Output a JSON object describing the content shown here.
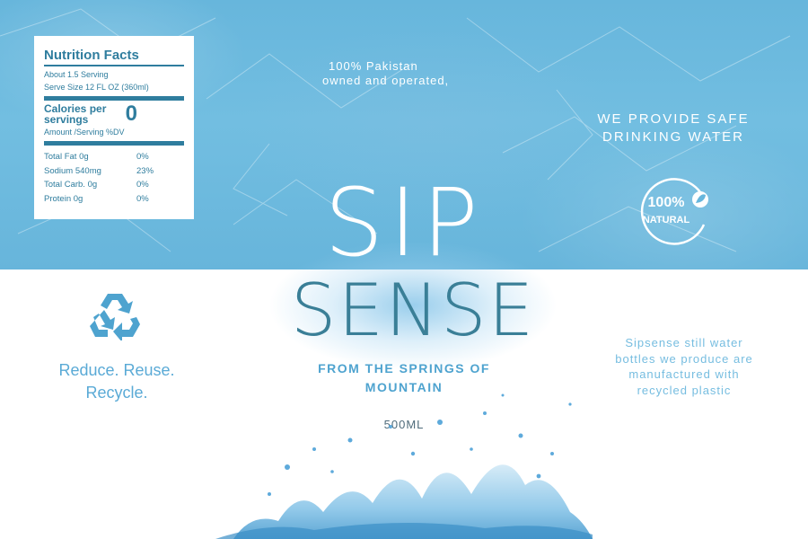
{
  "nutrition": {
    "title": "Nutrition Facts",
    "servings": "About 1.5 Serving",
    "serve_size": "Serve Size 12 FL OZ (360ml)",
    "calories_label": "Calories per servings",
    "calories_value": "0",
    "amount_label": "Amount /Serving %DV",
    "rows": [
      {
        "name": "Total Fat 0g",
        "dv": "0%"
      },
      {
        "name": "Sodium 540mg",
        "dv": "23%"
      },
      {
        "name": "Total Carb. 0g",
        "dv": "0%"
      },
      {
        "name": "Protein 0g",
        "dv": "0%"
      }
    ]
  },
  "tagline_left": {
    "line1": "100% Pakistan",
    "line2": "owned and operated,"
  },
  "tagline_right": {
    "line1": "WE PROVIDE SAFE",
    "line2": "DRINKING WATER"
  },
  "badge": {
    "percent": "100%",
    "word": "NATURAL",
    "icon": "leaf-icon"
  },
  "brand": {
    "top": "SIP",
    "bottom": "SENSE"
  },
  "springs": {
    "line1": "FROM THE SPRINGS OF",
    "line2": "MOUNTAIN"
  },
  "volume": "500ML",
  "recycle": {
    "icon": "recycle-icon",
    "line1": "Reduce. Reuse.",
    "line2": "Recycle."
  },
  "bottles_text": {
    "line1": "Sipsense still water",
    "line2": "bottles we produce are",
    "line3": "manufactured with",
    "line4": "recycled plastic"
  },
  "colors": {
    "sky": "#67b6dc",
    "brand_dark": "#3a7f97",
    "accent": "#4ea3cf",
    "nutrition_text": "#2f7d9e"
  }
}
